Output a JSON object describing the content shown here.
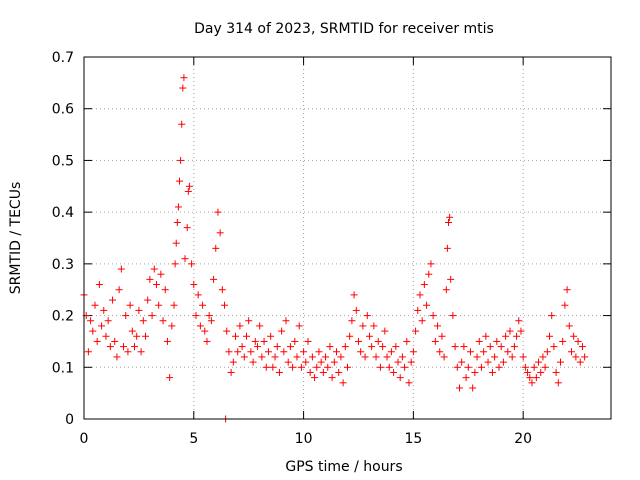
{
  "chart_data": {
    "type": "scatter",
    "title": "Day 314 of 2023, SRMTID for receiver mtis",
    "xlabel": "GPS time / hours",
    "ylabel": "SRMTID / TECUs",
    "xlim": [
      0,
      24
    ],
    "ylim": [
      0,
      0.7
    ],
    "x_ticks": [
      0,
      5,
      10,
      15,
      20
    ],
    "x_tick_labels": [
      "0",
      "5",
      "10",
      "15",
      "20"
    ],
    "y_ticks": [
      0,
      0.1,
      0.2,
      0.3,
      0.4,
      0.5,
      0.6,
      0.7
    ],
    "y_tick_labels": [
      "0",
      "0.1",
      "0.2",
      "0.3",
      "0.4",
      "0.5",
      "0.6",
      "0.7"
    ],
    "grid": true,
    "marker": "plus",
    "point_color": "#ff0000",
    "series": [
      {
        "name": "SRMTID",
        "points": [
          [
            0.0,
            0.24
          ],
          [
            0.1,
            0.2
          ],
          [
            0.2,
            0.13
          ],
          [
            0.3,
            0.19
          ],
          [
            0.4,
            0.17
          ],
          [
            0.5,
            0.22
          ],
          [
            0.6,
            0.15
          ],
          [
            0.7,
            0.26
          ],
          [
            0.8,
            0.18
          ],
          [
            0.9,
            0.21
          ],
          [
            1.0,
            0.16
          ],
          [
            1.1,
            0.19
          ],
          [
            1.2,
            0.14
          ],
          [
            1.3,
            0.23
          ],
          [
            1.4,
            0.15
          ],
          [
            1.5,
            0.12
          ],
          [
            1.6,
            0.25
          ],
          [
            1.7,
            0.29
          ],
          [
            1.8,
            0.14
          ],
          [
            1.9,
            0.2
          ],
          [
            2.0,
            0.13
          ],
          [
            2.1,
            0.22
          ],
          [
            2.2,
            0.17
          ],
          [
            2.3,
            0.14
          ],
          [
            2.4,
            0.16
          ],
          [
            2.5,
            0.21
          ],
          [
            2.6,
            0.13
          ],
          [
            2.7,
            0.19
          ],
          [
            2.8,
            0.16
          ],
          [
            2.9,
            0.23
          ],
          [
            3.0,
            0.27
          ],
          [
            3.1,
            0.2
          ],
          [
            3.2,
            0.29
          ],
          [
            3.3,
            0.26
          ],
          [
            3.4,
            0.22
          ],
          [
            3.5,
            0.28
          ],
          [
            3.6,
            0.19
          ],
          [
            3.7,
            0.25
          ],
          [
            3.8,
            0.15
          ],
          [
            3.9,
            0.08
          ],
          [
            4.0,
            0.18
          ],
          [
            4.1,
            0.22
          ],
          [
            4.15,
            0.3
          ],
          [
            4.2,
            0.34
          ],
          [
            4.25,
            0.38
          ],
          [
            4.3,
            0.41
          ],
          [
            4.35,
            0.46
          ],
          [
            4.4,
            0.5
          ],
          [
            4.45,
            0.57
          ],
          [
            4.5,
            0.64
          ],
          [
            4.55,
            0.66
          ],
          [
            4.6,
            0.31
          ],
          [
            4.7,
            0.37
          ],
          [
            4.75,
            0.44
          ],
          [
            4.8,
            0.45
          ],
          [
            4.9,
            0.3
          ],
          [
            5.0,
            0.26
          ],
          [
            5.1,
            0.2
          ],
          [
            5.2,
            0.24
          ],
          [
            5.3,
            0.18
          ],
          [
            5.4,
            0.22
          ],
          [
            5.5,
            0.17
          ],
          [
            5.6,
            0.15
          ],
          [
            5.7,
            0.2
          ],
          [
            5.8,
            0.19
          ],
          [
            5.9,
            0.27
          ],
          [
            6.0,
            0.33
          ],
          [
            6.1,
            0.4
          ],
          [
            6.2,
            0.36
          ],
          [
            6.3,
            0.25
          ],
          [
            6.4,
            0.22
          ],
          [
            6.5,
            0.17
          ],
          [
            6.6,
            0.13
          ],
          [
            6.7,
            0.09
          ],
          [
            6.8,
            0.11
          ],
          [
            6.9,
            0.16
          ],
          [
            7.0,
            0.13
          ],
          [
            7.1,
            0.18
          ],
          [
            7.2,
            0.14
          ],
          [
            7.3,
            0.12
          ],
          [
            7.4,
            0.16
          ],
          [
            7.5,
            0.19
          ],
          [
            7.6,
            0.13
          ],
          [
            7.7,
            0.11
          ],
          [
            7.8,
            0.15
          ],
          [
            7.9,
            0.14
          ],
          [
            8.0,
            0.18
          ],
          [
            8.1,
            0.12
          ],
          [
            8.2,
            0.15
          ],
          [
            8.3,
            0.1
          ],
          [
            8.4,
            0.13
          ],
          [
            8.5,
            0.16
          ],
          [
            8.6,
            0.1
          ],
          [
            8.7,
            0.12
          ],
          [
            8.8,
            0.14
          ],
          [
            8.9,
            0.09
          ],
          [
            9.0,
            0.17
          ],
          [
            9.1,
            0.13
          ],
          [
            9.2,
            0.19
          ],
          [
            9.3,
            0.11
          ],
          [
            9.4,
            0.14
          ],
          [
            9.5,
            0.1
          ],
          [
            9.6,
            0.15
          ],
          [
            9.7,
            0.12
          ],
          [
            9.8,
            0.18
          ],
          [
            9.9,
            0.1
          ],
          [
            10.0,
            0.13
          ],
          [
            10.1,
            0.11
          ],
          [
            10.2,
            0.15
          ],
          [
            10.3,
            0.09
          ],
          [
            10.4,
            0.12
          ],
          [
            10.5,
            0.08
          ],
          [
            10.6,
            0.1
          ],
          [
            10.7,
            0.13
          ],
          [
            10.8,
            0.11
          ],
          [
            10.9,
            0.09
          ],
          [
            11.0,
            0.12
          ],
          [
            11.1,
            0.1
          ],
          [
            11.2,
            0.14
          ],
          [
            11.3,
            0.08
          ],
          [
            11.4,
            0.11
          ],
          [
            11.5,
            0.13
          ],
          [
            11.6,
            0.09
          ],
          [
            11.7,
            0.12
          ],
          [
            11.8,
            0.07
          ],
          [
            11.9,
            0.14
          ],
          [
            12.0,
            0.1
          ],
          [
            12.1,
            0.16
          ],
          [
            12.2,
            0.19
          ],
          [
            12.3,
            0.24
          ],
          [
            12.4,
            0.21
          ],
          [
            12.5,
            0.15
          ],
          [
            12.6,
            0.13
          ],
          [
            12.7,
            0.18
          ],
          [
            12.8,
            0.12
          ],
          [
            12.9,
            0.2
          ],
          [
            13.0,
            0.16
          ],
          [
            13.1,
            0.14
          ],
          [
            13.2,
            0.18
          ],
          [
            13.3,
            0.12
          ],
          [
            13.4,
            0.15
          ],
          [
            13.5,
            0.1
          ],
          [
            13.6,
            0.14
          ],
          [
            13.7,
            0.17
          ],
          [
            13.8,
            0.12
          ],
          [
            13.9,
            0.1
          ],
          [
            14.0,
            0.13
          ],
          [
            14.1,
            0.09
          ],
          [
            14.2,
            0.14
          ],
          [
            14.3,
            0.11
          ],
          [
            14.4,
            0.08
          ],
          [
            14.5,
            0.12
          ],
          [
            14.6,
            0.1
          ],
          [
            14.7,
            0.15
          ],
          [
            14.8,
            0.07
          ],
          [
            14.9,
            0.11
          ],
          [
            15.0,
            0.13
          ],
          [
            15.1,
            0.17
          ],
          [
            15.2,
            0.21
          ],
          [
            15.3,
            0.24
          ],
          [
            15.4,
            0.19
          ],
          [
            15.5,
            0.26
          ],
          [
            15.6,
            0.22
          ],
          [
            15.7,
            0.28
          ],
          [
            15.8,
            0.3
          ],
          [
            15.9,
            0.2
          ],
          [
            16.0,
            0.15
          ],
          [
            16.1,
            0.18
          ],
          [
            16.2,
            0.13
          ],
          [
            16.3,
            0.16
          ],
          [
            16.4,
            0.12
          ],
          [
            16.5,
            0.25
          ],
          [
            16.55,
            0.33
          ],
          [
            16.6,
            0.38
          ],
          [
            16.65,
            0.39
          ],
          [
            16.7,
            0.27
          ],
          [
            16.8,
            0.2
          ],
          [
            16.9,
            0.14
          ],
          [
            17.0,
            0.1
          ],
          [
            17.1,
            0.06
          ],
          [
            17.2,
            0.11
          ],
          [
            17.3,
            0.14
          ],
          [
            17.4,
            0.08
          ],
          [
            17.5,
            0.1
          ],
          [
            17.6,
            0.13
          ],
          [
            17.7,
            0.06
          ],
          [
            17.8,
            0.09
          ],
          [
            17.9,
            0.12
          ],
          [
            18.0,
            0.15
          ],
          [
            18.1,
            0.1
          ],
          [
            18.2,
            0.13
          ],
          [
            18.3,
            0.16
          ],
          [
            18.4,
            0.11
          ],
          [
            18.5,
            0.14
          ],
          [
            18.6,
            0.09
          ],
          [
            18.7,
            0.12
          ],
          [
            18.8,
            0.15
          ],
          [
            18.9,
            0.1
          ],
          [
            19.0,
            0.14
          ],
          [
            19.1,
            0.11
          ],
          [
            19.2,
            0.16
          ],
          [
            19.3,
            0.13
          ],
          [
            19.4,
            0.17
          ],
          [
            19.5,
            0.12
          ],
          [
            19.6,
            0.14
          ],
          [
            19.7,
            0.16
          ],
          [
            19.8,
            0.19
          ],
          [
            19.9,
            0.17
          ],
          [
            20.0,
            0.12
          ],
          [
            20.1,
            0.1
          ],
          [
            20.2,
            0.09
          ],
          [
            20.3,
            0.08
          ],
          [
            20.4,
            0.07
          ],
          [
            20.5,
            0.1
          ],
          [
            20.6,
            0.08
          ],
          [
            20.7,
            0.11
          ],
          [
            20.8,
            0.09
          ],
          [
            20.9,
            0.12
          ],
          [
            21.0,
            0.1
          ],
          [
            21.1,
            0.13
          ],
          [
            21.2,
            0.16
          ],
          [
            21.3,
            0.2
          ],
          [
            21.4,
            0.14
          ],
          [
            21.5,
            0.09
          ],
          [
            21.6,
            0.07
          ],
          [
            21.7,
            0.11
          ],
          [
            21.8,
            0.15
          ],
          [
            21.9,
            0.22
          ],
          [
            22.0,
            0.25
          ],
          [
            22.1,
            0.18
          ],
          [
            22.2,
            0.13
          ],
          [
            22.3,
            0.16
          ],
          [
            22.4,
            0.12
          ],
          [
            22.5,
            0.15
          ],
          [
            22.6,
            0.11
          ],
          [
            22.7,
            0.14
          ],
          [
            22.8,
            0.12
          ],
          [
            6.45,
            0.0
          ]
        ]
      }
    ]
  }
}
